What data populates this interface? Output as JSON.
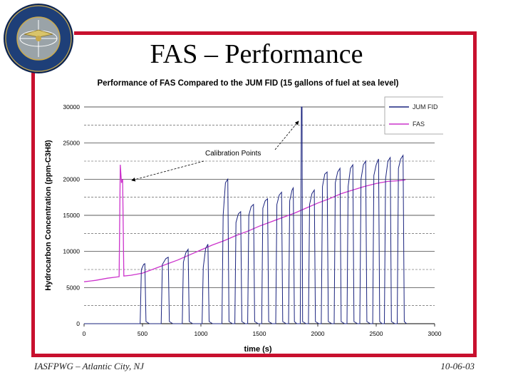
{
  "slide": {
    "title": "FAS – Performance",
    "footer_left": "IASFPWG – Atlantic City, NJ",
    "footer_right": "10-06-03",
    "accent_color": "#c8102e"
  },
  "logo": {
    "name": "faa-seal",
    "text_top": "FEDERAL AVIATION",
    "text_bottom": "ADMINISTRATION"
  },
  "chart_data": {
    "type": "line",
    "title": "Performance of FAS Compared to the JUM FID (15 gallons of fuel at sea level)",
    "xlabel": "time (s)",
    "ylabel": "Hydrocarbon Concentration (ppm-C3H8)",
    "xlim": [
      0,
      3000
    ],
    "ylim": [
      0,
      30000
    ],
    "x_ticks": [
      "0",
      "500",
      "1000",
      "1500",
      "2000",
      "2500",
      "3000"
    ],
    "y_ticks": [
      "0",
      "5000",
      "10000",
      "15000",
      "20000",
      "25000",
      "30000"
    ],
    "grid": true,
    "legend_position": "top-right",
    "annotation": "Calibration Points",
    "series": [
      {
        "name": "JUM FID",
        "color": "#1a237e",
        "points": [
          [
            0,
            0
          ],
          [
            480,
            0
          ],
          [
            490,
            7500
          ],
          [
            510,
            8200
          ],
          [
            520,
            8300
          ],
          [
            530,
            300
          ],
          [
            560,
            0
          ],
          [
            660,
            0
          ],
          [
            670,
            8200
          ],
          [
            700,
            9000
          ],
          [
            720,
            9200
          ],
          [
            730,
            300
          ],
          [
            760,
            0
          ],
          [
            840,
            0
          ],
          [
            850,
            8500
          ],
          [
            870,
            9800
          ],
          [
            890,
            10300
          ],
          [
            900,
            300
          ],
          [
            930,
            0
          ],
          [
            1010,
            0
          ],
          [
            1020,
            7800
          ],
          [
            1040,
            10400
          ],
          [
            1060,
            11000
          ],
          [
            1070,
            300
          ],
          [
            1100,
            0
          ],
          [
            1180,
            0
          ],
          [
            1190,
            15000
          ],
          [
            1210,
            19500
          ],
          [
            1230,
            20000
          ],
          [
            1240,
            300
          ],
          [
            1270,
            0
          ],
          [
            1290,
            0
          ],
          [
            1300,
            14000
          ],
          [
            1320,
            15200
          ],
          [
            1340,
            15500
          ],
          [
            1350,
            300
          ],
          [
            1380,
            0
          ],
          [
            1400,
            0
          ],
          [
            1410,
            15000
          ],
          [
            1430,
            16200
          ],
          [
            1450,
            16500
          ],
          [
            1460,
            300
          ],
          [
            1490,
            0
          ],
          [
            1520,
            0
          ],
          [
            1530,
            16000
          ],
          [
            1550,
            17000
          ],
          [
            1570,
            17300
          ],
          [
            1580,
            300
          ],
          [
            1610,
            0
          ],
          [
            1640,
            0
          ],
          [
            1650,
            16500
          ],
          [
            1670,
            17800
          ],
          [
            1690,
            18200
          ],
          [
            1700,
            300
          ],
          [
            1730,
            0
          ],
          [
            1750,
            0
          ],
          [
            1760,
            17000
          ],
          [
            1780,
            18500
          ],
          [
            1790,
            18800
          ],
          [
            1800,
            300
          ],
          [
            1820,
            0
          ],
          [
            1850,
            0
          ],
          [
            1860,
            30000
          ],
          [
            1865,
            30000
          ],
          [
            1870,
            300
          ],
          [
            1900,
            0
          ],
          [
            1920,
            0
          ],
          [
            1930,
            16500
          ],
          [
            1950,
            18000
          ],
          [
            1970,
            18500
          ],
          [
            1980,
            300
          ],
          [
            2010,
            0
          ],
          [
            2030,
            0
          ],
          [
            2040,
            19000
          ],
          [
            2060,
            20700
          ],
          [
            2080,
            21000
          ],
          [
            2090,
            300
          ],
          [
            2120,
            0
          ],
          [
            2140,
            0
          ],
          [
            2150,
            19500
          ],
          [
            2170,
            21000
          ],
          [
            2190,
            21500
          ],
          [
            2200,
            300
          ],
          [
            2230,
            0
          ],
          [
            2250,
            0
          ],
          [
            2260,
            19000
          ],
          [
            2280,
            21500
          ],
          [
            2300,
            22000
          ],
          [
            2310,
            300
          ],
          [
            2340,
            0
          ],
          [
            2360,
            0
          ],
          [
            2370,
            20000
          ],
          [
            2390,
            22000
          ],
          [
            2410,
            22500
          ],
          [
            2420,
            300
          ],
          [
            2450,
            0
          ],
          [
            2470,
            0
          ],
          [
            2480,
            20500
          ],
          [
            2500,
            22000
          ],
          [
            2520,
            22800
          ],
          [
            2530,
            300
          ],
          [
            2550,
            0
          ],
          [
            2570,
            0
          ],
          [
            2580,
            20000
          ],
          [
            2600,
            22500
          ],
          [
            2620,
            23000
          ],
          [
            2630,
            300
          ],
          [
            2660,
            0
          ],
          [
            2680,
            0
          ],
          [
            2690,
            21500
          ],
          [
            2710,
            22800
          ],
          [
            2730,
            23300
          ],
          [
            2740,
            300
          ],
          [
            2760,
            0
          ]
        ]
      },
      {
        "name": "FAS",
        "color": "#cc33cc",
        "points": [
          [
            0,
            5800
          ],
          [
            100,
            6000
          ],
          [
            200,
            6300
          ],
          [
            300,
            6500
          ],
          [
            310,
            22000
          ],
          [
            320,
            19500
          ],
          [
            330,
            20000
          ],
          [
            340,
            6600
          ],
          [
            400,
            6700
          ],
          [
            500,
            7000
          ],
          [
            600,
            7600
          ],
          [
            700,
            8200
          ],
          [
            800,
            8800
          ],
          [
            900,
            9500
          ],
          [
            1000,
            10200
          ],
          [
            1100,
            10900
          ],
          [
            1200,
            11500
          ],
          [
            1300,
            12200
          ],
          [
            1400,
            12800
          ],
          [
            1500,
            13500
          ],
          [
            1600,
            14100
          ],
          [
            1700,
            14700
          ],
          [
            1800,
            15300
          ],
          [
            1900,
            16000
          ],
          [
            2000,
            16700
          ],
          [
            2100,
            17300
          ],
          [
            2200,
            18000
          ],
          [
            2300,
            18500
          ],
          [
            2400,
            19000
          ],
          [
            2500,
            19400
          ],
          [
            2600,
            19700
          ],
          [
            2700,
            19800
          ],
          [
            2750,
            19900
          ]
        ]
      }
    ]
  }
}
